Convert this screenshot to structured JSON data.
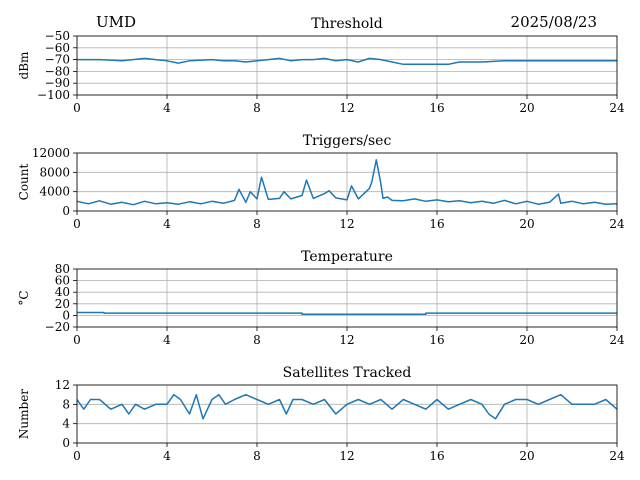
{
  "header": {
    "station": "UMD",
    "date": "2025/08/23"
  },
  "accent_color": "#1f77b4",
  "chart_data": [
    {
      "type": "line",
      "title": "Threshold",
      "xlabel": "",
      "ylabel": "dBm",
      "xlim": [
        0,
        24
      ],
      "ylim": [
        -100,
        -50
      ],
      "xticks": [
        0,
        4,
        8,
        12,
        16,
        20,
        24
      ],
      "yticks": [
        -50,
        -60,
        -70,
        -80,
        -90,
        -100
      ],
      "grid": true,
      "series": [
        {
          "x": [
            0,
            1,
            2,
            3,
            3.5,
            4,
            4.5,
            5,
            6,
            6.5,
            7,
            7.5,
            8,
            8.5,
            9,
            9.5,
            10,
            10.5,
            11,
            11.5,
            12,
            12.5,
            13,
            13.5,
            14,
            14.5,
            15,
            16,
            16.5,
            17,
            18,
            19,
            20,
            21,
            22,
            23,
            24
          ],
          "y": [
            -70,
            -70,
            -71,
            -69,
            -70,
            -71,
            -73,
            -71,
            -70,
            -71,
            -71,
            -72,
            -71,
            -70,
            -69,
            -71,
            -70,
            -70,
            -69,
            -71,
            -70,
            -72,
            -69,
            -70,
            -72,
            -74,
            -74,
            -74,
            -74,
            -72,
            -72,
            -71,
            -71,
            -71,
            -71,
            -71,
            -71
          ]
        }
      ]
    },
    {
      "type": "line",
      "title": "Triggers/sec",
      "xlabel": "",
      "ylabel": "Count",
      "xlim": [
        0,
        24
      ],
      "ylim": [
        0,
        12000
      ],
      "xticks": [
        0,
        4,
        8,
        12,
        16,
        20,
        24
      ],
      "yticks": [
        0,
        4000,
        8000,
        12000
      ],
      "grid": true,
      "series": [
        {
          "x": [
            0,
            0.5,
            1,
            1.5,
            2,
            2.5,
            3,
            3.5,
            4,
            4.5,
            5,
            5.5,
            6,
            6.5,
            7,
            7.2,
            7.5,
            7.7,
            8,
            8.2,
            8.5,
            9,
            9.2,
            9.5,
            10,
            10.2,
            10.5,
            11,
            11.2,
            11.5,
            12,
            12.2,
            12.5,
            13,
            13.1,
            13.3,
            13.5,
            13.6,
            13.8,
            14,
            14.5,
            15,
            15.5,
            16,
            16.5,
            17,
            17.5,
            18,
            18.5,
            19,
            19.5,
            20,
            20.5,
            21,
            21.4,
            21.5,
            22,
            22.5,
            23,
            23.5,
            24
          ],
          "y": [
            2000,
            1500,
            2100,
            1400,
            1800,
            1300,
            2000,
            1500,
            1700,
            1400,
            1900,
            1500,
            2000,
            1600,
            2200,
            4500,
            1800,
            4000,
            2500,
            7000,
            2400,
            2600,
            4000,
            2500,
            3200,
            6400,
            2600,
            3600,
            4200,
            2700,
            2300,
            5200,
            2500,
            4700,
            6000,
            10600,
            5700,
            2600,
            2900,
            2200,
            2100,
            2500,
            2000,
            2300,
            1900,
            2100,
            1700,
            2000,
            1600,
            2200,
            1500,
            2000,
            1400,
            1800,
            3500,
            1600,
            2000,
            1500,
            1800,
            1400,
            1500
          ]
        }
      ]
    },
    {
      "type": "line",
      "title": "Temperature",
      "xlabel": "",
      "ylabel": "°C",
      "xlim": [
        0,
        24
      ],
      "ylim": [
        -20,
        80
      ],
      "xticks": [
        0,
        4,
        8,
        12,
        16,
        20,
        24
      ],
      "yticks": [
        -20,
        0,
        20,
        40,
        60,
        80
      ],
      "grid": true,
      "series": [
        {
          "x": [
            0,
            1.2,
            1.2,
            10,
            10,
            15.5,
            15.5,
            24
          ],
          "y": [
            5,
            5,
            4,
            4,
            2,
            2,
            4,
            4
          ]
        }
      ]
    },
    {
      "type": "line",
      "title": "Satellites Tracked",
      "xlabel": "",
      "ylabel": "Number",
      "xlim": [
        0,
        24
      ],
      "ylim": [
        0,
        12
      ],
      "xticks": [
        0,
        4,
        8,
        12,
        16,
        20,
        24
      ],
      "yticks": [
        0,
        4,
        8,
        12
      ],
      "grid": true,
      "series": [
        {
          "x": [
            0,
            0.3,
            0.6,
            1,
            1.5,
            2,
            2.3,
            2.6,
            3,
            3.5,
            4,
            4.3,
            4.6,
            5,
            5.3,
            5.6,
            6,
            6.3,
            6.6,
            7,
            7.5,
            8,
            8.5,
            9,
            9.3,
            9.6,
            10,
            10.5,
            11,
            11.5,
            12,
            12.5,
            13,
            13.5,
            14,
            14.5,
            15,
            15.5,
            16,
            16.5,
            17,
            17.5,
            18,
            18.3,
            18.6,
            19,
            19.5,
            20,
            20.5,
            21,
            21.5,
            22,
            22.5,
            23,
            23.5,
            24
          ],
          "y": [
            9,
            7,
            9,
            9,
            7,
            8,
            6,
            8,
            7,
            8,
            8,
            10,
            9,
            6,
            10,
            5,
            9,
            10,
            8,
            9,
            10,
            9,
            8,
            9,
            6,
            9,
            9,
            8,
            9,
            6,
            8,
            9,
            8,
            9,
            7,
            9,
            8,
            7,
            9,
            7,
            8,
            9,
            8,
            6,
            5,
            8,
            9,
            9,
            8,
            9,
            10,
            8,
            8,
            8,
            9,
            7
          ]
        }
      ]
    }
  ]
}
